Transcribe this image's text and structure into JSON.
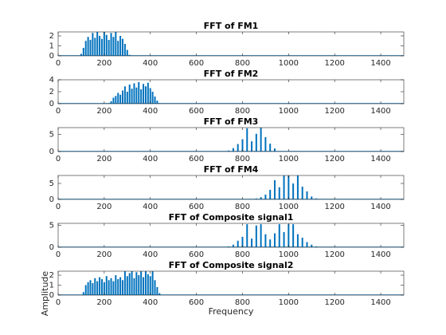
{
  "chart_data": [
    {
      "type": "stem",
      "title": "FFT of FM1",
      "color": "#0072bd",
      "xlim": [
        0,
        1500
      ],
      "xticks": [
        0,
        200,
        400,
        600,
        800,
        1000,
        1200,
        1400
      ],
      "ylim": [
        0,
        2.4
      ],
      "yticks": [
        0,
        1,
        2
      ],
      "x": [
        100,
        110,
        120,
        130,
        140,
        150,
        160,
        170,
        180,
        190,
        200,
        210,
        220,
        230,
        240,
        250,
        260,
        270,
        280,
        290,
        300,
        310
      ],
      "values": [
        0.2,
        0.8,
        1.5,
        1.9,
        1.6,
        2.3,
        1.8,
        2.4,
        2.0,
        1.7,
        2.4,
        2.1,
        1.6,
        2.3,
        1.9,
        2.4,
        1.5,
        2.0,
        1.7,
        1.2,
        0.6,
        0.1
      ]
    },
    {
      "type": "stem",
      "title": "FFT of FM2",
      "color": "#0072bd",
      "xlim": [
        0,
        1500
      ],
      "xticks": [
        0,
        200,
        400,
        600,
        800,
        1000,
        1200,
        1400
      ],
      "ylim": [
        0,
        4
      ],
      "yticks": [
        0,
        2,
        4
      ],
      "x": [
        220,
        230,
        240,
        250,
        260,
        270,
        280,
        290,
        300,
        310,
        320,
        330,
        340,
        350,
        360,
        370,
        380,
        390,
        400,
        410,
        420,
        430,
        440
      ],
      "values": [
        0.1,
        0.4,
        1.0,
        1.3,
        1.8,
        1.5,
        2.2,
        2.9,
        2.0,
        3.2,
        2.5,
        3.4,
        2.7,
        3.6,
        2.4,
        3.3,
        2.9,
        3.5,
        2.6,
        2.0,
        1.2,
        0.5,
        0.1
      ]
    },
    {
      "type": "stem",
      "title": "FFT of FM3",
      "color": "#0072bd",
      "xlim": [
        0,
        1500
      ],
      "xticks": [
        0,
        200,
        400,
        600,
        800,
        1000,
        1200,
        1400
      ],
      "ylim": [
        0,
        7
      ],
      "yticks": [
        0,
        5
      ],
      "x": [
        740,
        760,
        780,
        800,
        820,
        840,
        860,
        880,
        900,
        920,
        940
      ],
      "values": [
        0.3,
        1.0,
        2.2,
        3.6,
        6.8,
        3.0,
        5.2,
        7,
        4.2,
        2.3,
        0.9
      ]
    },
    {
      "type": "stem",
      "title": "FFT of FM4",
      "color": "#0072bd",
      "xlim": [
        0,
        1500
      ],
      "xticks": [
        0,
        200,
        400,
        600,
        800,
        1000,
        1200,
        1400
      ],
      "ylim": [
        0,
        7.5
      ],
      "yticks": [
        0,
        5
      ],
      "x": [
        860,
        880,
        900,
        920,
        940,
        960,
        980,
        1000,
        1020,
        1040,
        1060,
        1080,
        1100,
        1120
      ],
      "values": [
        0.3,
        0.7,
        1.5,
        3.0,
        6.0,
        3.8,
        7.5,
        7.5,
        5.0,
        7.5,
        4.0,
        2.5,
        0.9,
        0.3
      ]
    },
    {
      "type": "stem",
      "title": "FFT of Composite signal1",
      "color": "#0072bd",
      "xlim": [
        0,
        1500
      ],
      "xticks": [
        0,
        200,
        400,
        600,
        800,
        1000,
        1200,
        1400
      ],
      "ylim": [
        0,
        5.5
      ],
      "yticks": [
        0,
        5
      ],
      "x": [
        740,
        760,
        780,
        800,
        820,
        840,
        860,
        880,
        900,
        920,
        940,
        960,
        980,
        1000,
        1020,
        1040,
        1060,
        1080,
        1100,
        1120
      ],
      "values": [
        0.2,
        0.6,
        1.5,
        2.4,
        5.3,
        2.0,
        5.0,
        5.3,
        3.0,
        1.8,
        3.2,
        5.3,
        3.5,
        5.3,
        5.3,
        3.0,
        2.2,
        1.2,
        0.6,
        0.2
      ]
    },
    {
      "type": "stem",
      "title": "FFT of Composite signal2",
      "color": "#0072bd",
      "xlabel": "Frequency",
      "ylabel": "Amplitude",
      "xlim": [
        0,
        1500
      ],
      "xticks": [
        0,
        200,
        400,
        600,
        800,
        1000,
        1200,
        1400
      ],
      "ylim": [
        0,
        2.4
      ],
      "yticks": [
        0,
        1,
        2
      ],
      "x": [
        110,
        120,
        130,
        140,
        150,
        160,
        170,
        180,
        190,
        200,
        210,
        220,
        230,
        240,
        250,
        260,
        270,
        280,
        290,
        300,
        310,
        320,
        330,
        340,
        350,
        360,
        370,
        380,
        390,
        400,
        410,
        420,
        430,
        440
      ],
      "values": [
        0.3,
        1.0,
        1.3,
        1.5,
        1.2,
        1.7,
        1.4,
        1.8,
        1.6,
        1.3,
        1.9,
        1.5,
        1.7,
        1.4,
        2.0,
        1.6,
        1.8,
        1.5,
        2.4,
        1.9,
        2.2,
        2.4,
        1.7,
        2.3,
        2.0,
        2.4,
        1.8,
        2.4,
        2.1,
        1.9,
        2.4,
        1.5,
        0.8,
        0.2
      ]
    }
  ]
}
